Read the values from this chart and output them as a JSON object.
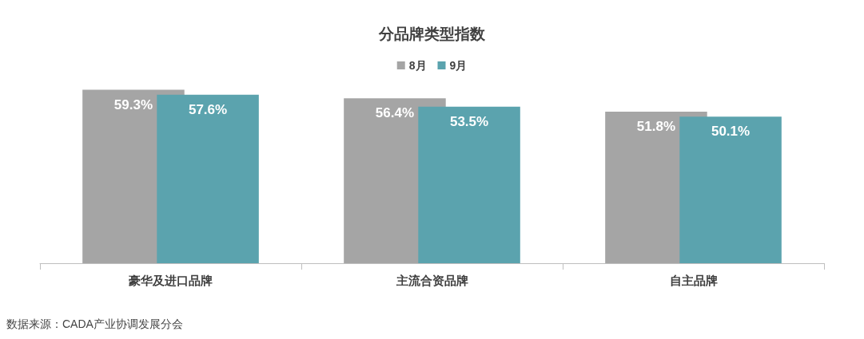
{
  "chart_data": {
    "type": "bar",
    "title": "分品牌类型指数",
    "categories": [
      "豪华及进口品牌",
      "主流合资品牌",
      "自主品牌"
    ],
    "series": [
      {
        "name": "8月",
        "color": "#a5a5a5",
        "values": [
          59.3,
          56.4,
          51.8
        ],
        "value_labels": [
          "59.3%",
          "56.4%",
          "51.8%"
        ]
      },
      {
        "name": "9月",
        "color": "#5ba3ae",
        "values": [
          57.6,
          53.5,
          50.1
        ],
        "value_labels": [
          "57.6%",
          "53.5%",
          "50.1%"
        ]
      }
    ],
    "legend": "top",
    "annotations": [
      "数据来源：CADA产业协调发展分会"
    ]
  }
}
